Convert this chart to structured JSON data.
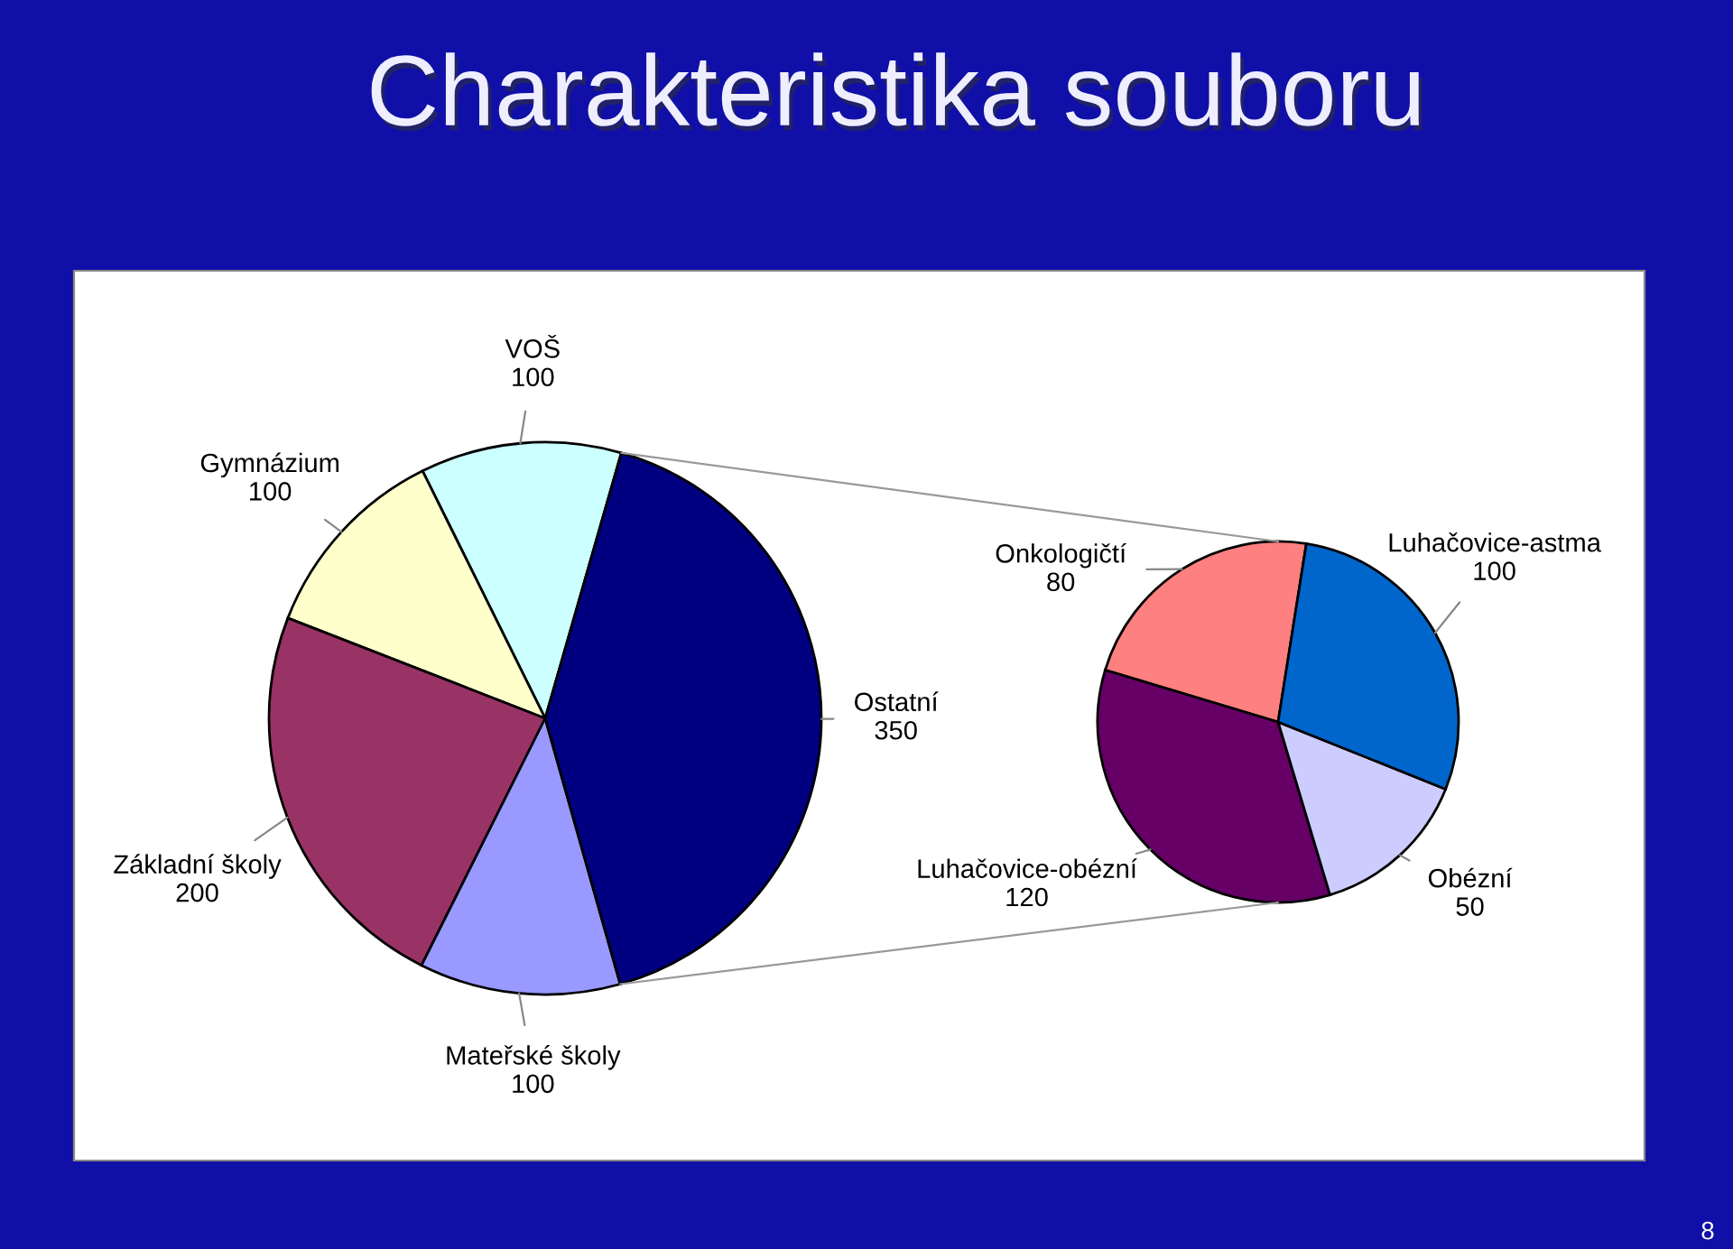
{
  "chart_data": [
    {
      "type": "pie",
      "title": "Charakteristika souboru",
      "categories": [
        "VOŠ",
        "Gymnázium",
        "Základní školy",
        "Mateřské školy",
        "Ostatní"
      ],
      "values": [
        100,
        100,
        200,
        100,
        350
      ],
      "colors": [
        "#ccffff",
        "#ffffcc",
        "#993366",
        "#9999ff",
        "#000080"
      ],
      "data_labels": true,
      "annotations": [
        "8"
      ]
    },
    {
      "type": "pie",
      "categories": [
        "Onkologičtí",
        "Luhačovice-obézní",
        "Obézní",
        "Luhačovice-astma"
      ],
      "values": [
        80,
        120,
        50,
        100
      ],
      "colors": [
        "#ff8080",
        "#660066",
        "#ccccff",
        "#0066cc"
      ],
      "data_labels": true
    }
  ]
}
